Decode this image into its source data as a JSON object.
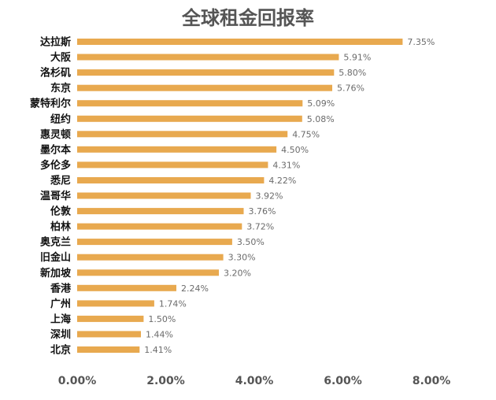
{
  "chart_data": {
    "type": "bar",
    "orientation": "horizontal",
    "title": "全球租金回报率",
    "xlabel": "",
    "ylabel": "",
    "categories": [
      "达拉斯",
      "大阪",
      "洛杉矶",
      "东京",
      "蒙特利尔",
      "纽约",
      "惠灵顿",
      "墨尔本",
      "多伦多",
      "悉尼",
      "温哥华",
      "伦敦",
      "柏林",
      "奥克兰",
      "旧金山",
      "新加坡",
      "香港",
      "广州",
      "上海",
      "深圳",
      "北京"
    ],
    "values": [
      7.35,
      5.91,
      5.8,
      5.76,
      5.09,
      5.08,
      4.75,
      4.5,
      4.31,
      4.22,
      3.92,
      3.76,
      3.72,
      3.5,
      3.3,
      3.2,
      2.24,
      1.74,
      1.5,
      1.44,
      1.41
    ],
    "value_labels": [
      "7.35%",
      "5.91%",
      "5.80%",
      "5.76%",
      "5.09%",
      "5.08%",
      "4.75%",
      "4.50%",
      "4.31%",
      "4.22%",
      "3.92%",
      "3.76%",
      "3.72%",
      "3.50%",
      "3.30%",
      "3.20%",
      "2.24%",
      "1.74%",
      "1.50%",
      "1.44%",
      "1.41%"
    ],
    "xlim": [
      0,
      8
    ],
    "x_ticks": [
      0,
      2,
      4,
      6,
      8
    ],
    "x_tick_labels": [
      "0.00%",
      "2.00%",
      "4.00%",
      "6.00%",
      "8.00%"
    ],
    "grid": false,
    "legend": "none",
    "bar_color": "#E8A94F"
  }
}
